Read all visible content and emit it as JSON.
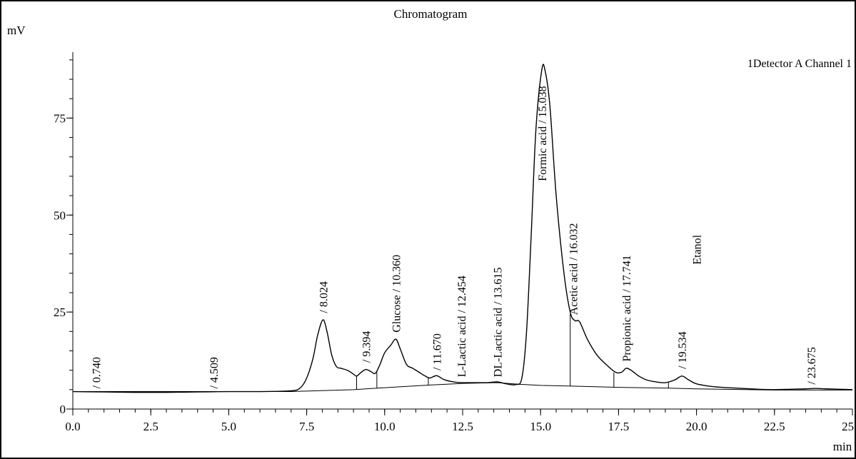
{
  "chart_data": {
    "type": "line",
    "title": "Chromatogram",
    "ylabel": "mV",
    "xlabel": "min",
    "legend": "1Detector A Channel 1",
    "xlim": [
      0.0,
      25.0
    ],
    "ylim": [
      0,
      92
    ],
    "x_ticks": [
      {
        "value": 0.0,
        "label": "0.0"
      },
      {
        "value": 2.5,
        "label": "2.5"
      },
      {
        "value": 5.0,
        "label": "5.0"
      },
      {
        "value": 7.5,
        "label": "7.5"
      },
      {
        "value": 10.0,
        "label": "10.0"
      },
      {
        "value": 12.5,
        "label": "12.5"
      },
      {
        "value": 15.0,
        "label": "15.0"
      },
      {
        "value": 17.5,
        "label": "17.5"
      },
      {
        "value": 20.0,
        "label": "20.0"
      },
      {
        "value": 22.5,
        "label": "22.5"
      },
      {
        "value": 25.0,
        "label": "25.0"
      }
    ],
    "y_ticks": [
      {
        "value": 0,
        "label": "0"
      },
      {
        "value": 25,
        "label": "25"
      },
      {
        "value": 50,
        "label": "50"
      },
      {
        "value": 75,
        "label": "75"
      }
    ],
    "series": [
      {
        "name": "1Detector A Channel 1",
        "x": [
          0.0,
          1.0,
          2.0,
          3.0,
          4.0,
          4.5,
          5.0,
          6.0,
          7.0,
          7.3,
          7.5,
          7.7,
          7.85,
          8.02,
          8.15,
          8.3,
          8.45,
          8.6,
          8.8,
          9.0,
          9.1,
          9.25,
          9.4,
          9.55,
          9.7,
          9.85,
          10.0,
          10.2,
          10.36,
          10.5,
          10.7,
          10.9,
          11.1,
          11.3,
          11.45,
          11.67,
          11.9,
          12.2,
          12.45,
          12.7,
          13.0,
          13.3,
          13.615,
          13.9,
          14.2,
          14.4,
          14.55,
          14.7,
          14.85,
          15.04,
          15.15,
          15.3,
          15.5,
          15.75,
          15.95,
          16.1,
          16.25,
          16.5,
          16.8,
          17.1,
          17.4,
          17.6,
          17.741,
          17.9,
          18.15,
          18.4,
          18.7,
          19.0,
          19.3,
          19.534,
          19.75,
          20.0,
          20.5,
          21.0,
          21.5,
          22.0,
          22.5,
          23.0,
          23.5,
          23.8,
          24.2,
          24.6,
          25.0
        ],
        "y": [
          4.5,
          4.4,
          4.3,
          4.3,
          4.4,
          4.45,
          4.5,
          4.5,
          4.7,
          5.5,
          8.0,
          13.0,
          19.0,
          23.0,
          20.0,
          14.0,
          11.0,
          10.5,
          10.0,
          9.0,
          8.5,
          9.5,
          10.2,
          9.7,
          9.2,
          11.5,
          14.5,
          16.5,
          18.0,
          15.5,
          11.5,
          10.5,
          9.5,
          8.5,
          8.0,
          8.6,
          7.6,
          7.0,
          6.8,
          6.8,
          6.8,
          6.8,
          7.0,
          6.5,
          6.3,
          8.0,
          20.0,
          45.0,
          72.0,
          87.5,
          87.0,
          78.0,
          55.0,
          35.0,
          25.0,
          22.8,
          22.5,
          18.0,
          14.0,
          11.5,
          9.5,
          9.5,
          10.5,
          10.0,
          8.5,
          7.5,
          7.0,
          6.8,
          7.5,
          8.5,
          7.5,
          6.5,
          5.8,
          5.5,
          5.3,
          5.1,
          5.0,
          5.1,
          5.2,
          5.3,
          5.2,
          5.1,
          5.0
        ]
      }
    ],
    "baseline": {
      "x": [
        0.0,
        7.0,
        9.0,
        10.0,
        11.5,
        12.5,
        13.6,
        14.3,
        15.0,
        16.0,
        17.5,
        19.0,
        20.0,
        22.5,
        25.0
      ],
      "y": [
        4.5,
        4.5,
        5.0,
        5.5,
        6.2,
        6.6,
        6.8,
        6.4,
        6.1,
        5.9,
        5.6,
        5.4,
        5.2,
        4.9,
        4.9
      ]
    },
    "peak_dividers": [
      {
        "x": 9.1,
        "y": 8.6
      },
      {
        "x": 9.75,
        "y": 9.5
      },
      {
        "x": 11.4,
        "y": 8.0
      },
      {
        "x": 15.95,
        "y": 24.5
      },
      {
        "x": 17.35,
        "y": 9.4
      },
      {
        "x": 19.1,
        "y": 6.9
      }
    ],
    "peak_labels": [
      {
        "x": 0.74,
        "y": 4.5,
        "text": "/ 0.740"
      },
      {
        "x": 4.509,
        "y": 4.5,
        "text": "/ 4.509"
      },
      {
        "x": 8.024,
        "y": 24.0,
        "text": "/ 8.024"
      },
      {
        "x": 9.394,
        "y": 11.2,
        "text": "/ 9.394"
      },
      {
        "x": 10.36,
        "y": 19.0,
        "text": "Glucose / 10.360"
      },
      {
        "x": 11.67,
        "y": 9.2,
        "text": "/ 11.670"
      },
      {
        "x": 12.454,
        "y": 7.5,
        "text": "L-Lactic acid / 12.454"
      },
      {
        "x": 13.615,
        "y": 7.5,
        "text": "DL-Lactic acid / 13.615"
      },
      {
        "x": 15.038,
        "y": 58.0,
        "text": "Formic acid / 15.038"
      },
      {
        "x": 16.032,
        "y": 23.5,
        "text": "Acetic acid / 16.032"
      },
      {
        "x": 17.741,
        "y": 11.5,
        "text": "Propionic acid / 17.741"
      },
      {
        "x": 19.534,
        "y": 9.6,
        "text": "/ 19.534"
      },
      {
        "x": 20.0,
        "y": 36.5,
        "text": "Etanol"
      },
      {
        "x": 23.675,
        "y": 5.6,
        "text": "/ 23.675"
      }
    ]
  }
}
